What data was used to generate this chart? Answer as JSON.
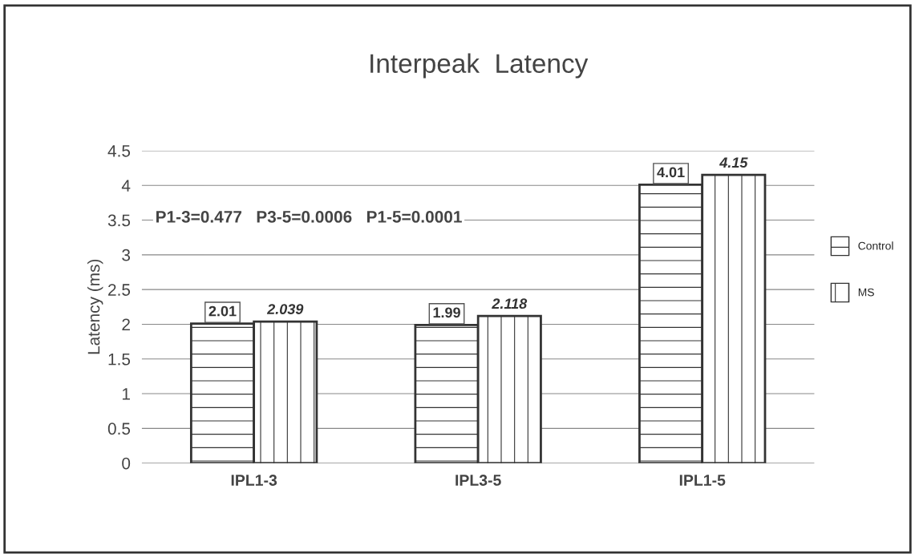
{
  "chart_data": {
    "type": "bar",
    "title": "Interpeak  Latency",
    "ylabel": "Latency (ms)",
    "categories": [
      "IPL1-3",
      "IPL3-5",
      "IPL1-5"
    ],
    "series": [
      {
        "name": "Control",
        "color": "#333333",
        "values": [
          2.01,
          1.99,
          4.01
        ]
      },
      {
        "name": "MS",
        "color": "#333333",
        "values": [
          2.039,
          2.118,
          4.15
        ]
      }
    ],
    "ylim": [
      0,
      4.5
    ],
    "yticks": [
      0,
      0.5,
      1,
      1.5,
      2,
      2.5,
      3,
      3.5,
      4,
      4.5
    ],
    "grid": "y",
    "legend": "right",
    "data_labels": true,
    "annotations": [
      "P1-3=0.477   P3-5=0.0006   P1-5=0.0001"
    ]
  }
}
